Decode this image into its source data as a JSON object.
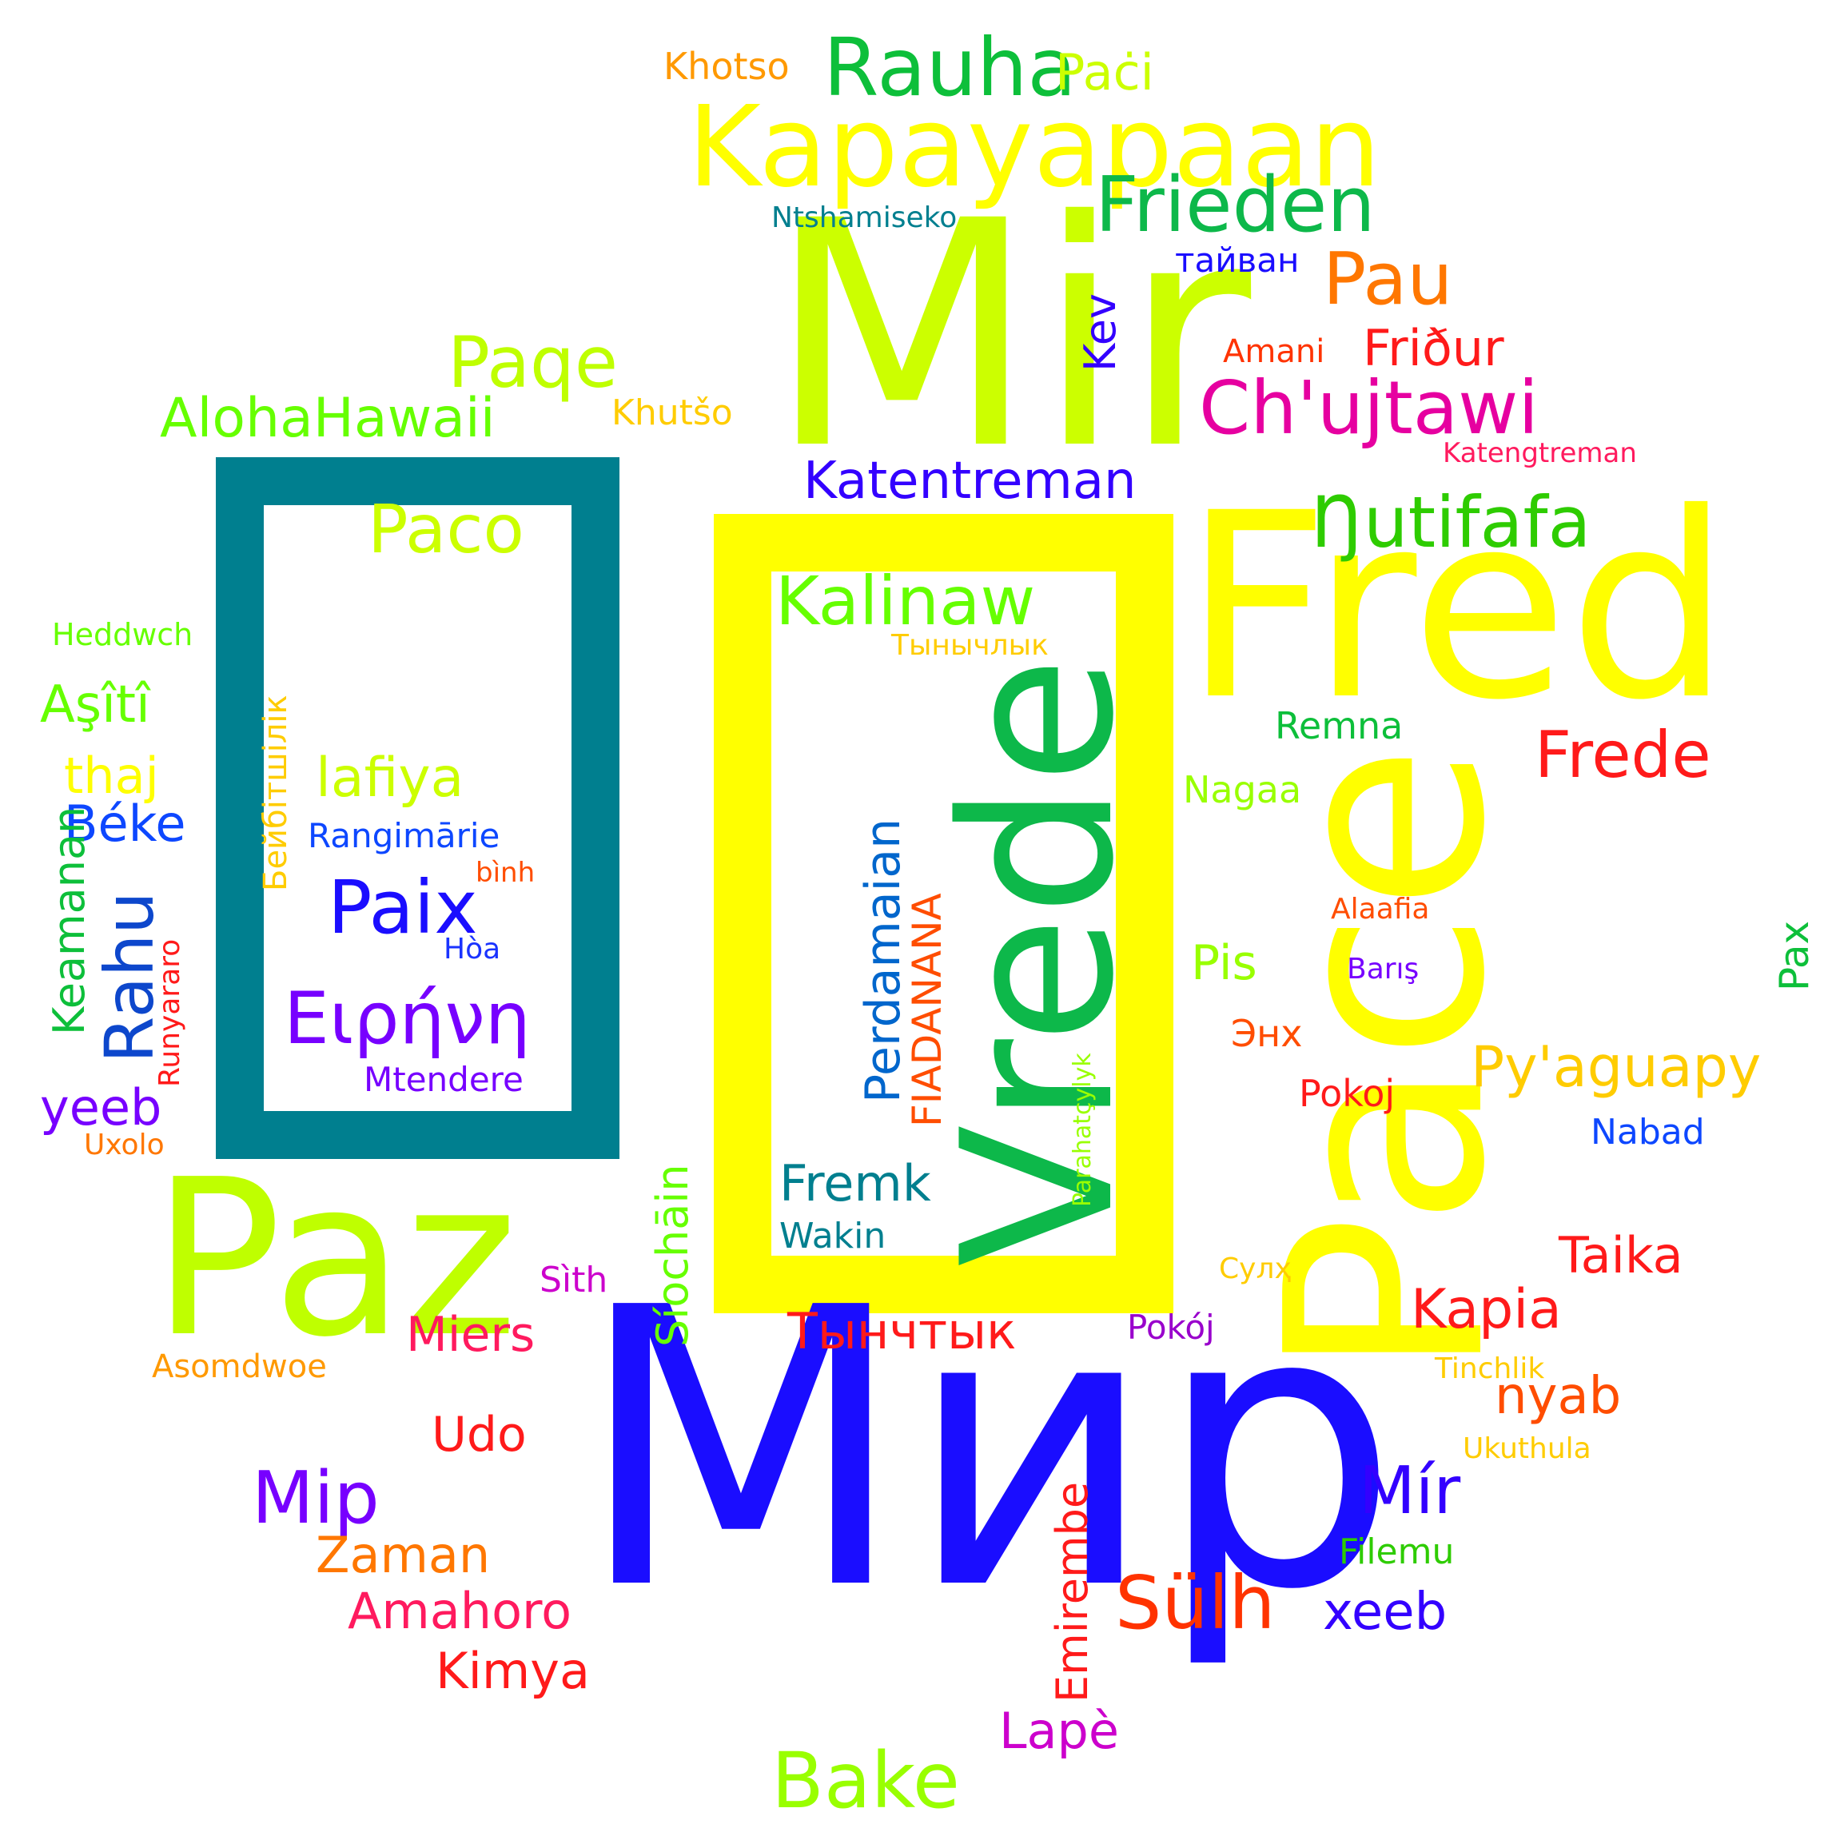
{
  "colors": {
    "background": "#ffffff",
    "teal_block": "#007f8f",
    "yellow_block": "#ffff00"
  },
  "words": [
    {
      "text": "Mir",
      "color": "#ccff00"
    },
    {
      "text": "Мир",
      "color": "#1a0dff"
    },
    {
      "text": "Fred",
      "color": "#ffff00"
    },
    {
      "text": "Pace",
      "color": "#ffff00"
    },
    {
      "text": "Paz",
      "color": "#bfff00"
    },
    {
      "text": "Vrede",
      "color": "#0db84a"
    },
    {
      "text": "Kapayapaan",
      "color": "#ffff00"
    },
    {
      "text": "Rauha",
      "color": "#0dbf3a"
    },
    {
      "text": "Paċi",
      "color": "#ccff00"
    },
    {
      "text": "Khotso",
      "color": "#ff9900"
    },
    {
      "text": "Frieden",
      "color": "#0db84a"
    },
    {
      "text": "Ntshamiseko",
      "color": "#007f8f"
    },
    {
      "text": "тайван",
      "color": "#1a0dff"
    },
    {
      "text": "Pau",
      "color": "#ff7700"
    },
    {
      "text": "Kev",
      "color": "#3300ff"
    },
    {
      "text": "Friður",
      "color": "#ff1a1a"
    },
    {
      "text": "Amani",
      "color": "#ff3300"
    },
    {
      "text": "Paqe",
      "color": "#bfff00"
    },
    {
      "text": "Ch'ujtawi",
      "color": "#e600a0"
    },
    {
      "text": "AlohaHawaii",
      "color": "#66ff00"
    },
    {
      "text": "Khutšo",
      "color": "#ffcc00"
    },
    {
      "text": "Katengtreman",
      "color": "#ff1a5e"
    },
    {
      "text": "Katentreman",
      "color": "#3300ff"
    },
    {
      "text": "Ŋutifafa",
      "color": "#2ecc00"
    },
    {
      "text": "Paco",
      "color": "#ccff00"
    },
    {
      "text": "Бейбітшілік",
      "color": "#ffcc00"
    },
    {
      "text": "lafiya",
      "color": "#ccff00"
    },
    {
      "text": "Rangimārie",
      "color": "#0d47ff"
    },
    {
      "text": "bình",
      "color": "#ff4d00"
    },
    {
      "text": "Paix",
      "color": "#1a0dff"
    },
    {
      "text": "Hòa",
      "color": "#1a33ff"
    },
    {
      "text": "Ειρήνη",
      "color": "#7700ff"
    },
    {
      "text": "Mtendere",
      "color": "#7700ff"
    },
    {
      "text": "Kalinaw",
      "color": "#66ff00"
    },
    {
      "text": "Тынычлык",
      "color": "#ffcc00"
    },
    {
      "text": "Perdamaian",
      "color": "#0066cc"
    },
    {
      "text": "FIADANANA",
      "color": "#ff4d00"
    },
    {
      "text": "Fremk",
      "color": "#007f8f"
    },
    {
      "text": "Wakin",
      "color": "#007f8f"
    },
    {
      "text": "Síochāin",
      "color": "#66ff00"
    },
    {
      "text": "Parahatçylyk",
      "color": "#99ff00"
    },
    {
      "text": "Heddwch",
      "color": "#66ff00"
    },
    {
      "text": "Aşîtî",
      "color": "#66ff00"
    },
    {
      "text": "thaj",
      "color": "#ffff00"
    },
    {
      "text": "Béke",
      "color": "#0d47ff"
    },
    {
      "text": "Rahu",
      "color": "#0d47cc"
    },
    {
      "text": "Runyararo",
      "color": "#ff1a1a"
    },
    {
      "text": "Keamanan",
      "color": "#0dbf3a"
    },
    {
      "text": "yeeb",
      "color": "#7700ff"
    },
    {
      "text": "Uxolo",
      "color": "#ff7700"
    },
    {
      "text": "Remna",
      "color": "#0dbf3a"
    },
    {
      "text": "Nagaa",
      "color": "#99ff00"
    },
    {
      "text": "Frede",
      "color": "#ff1a1a"
    },
    {
      "text": "Pis",
      "color": "#99ff00"
    },
    {
      "text": "Alaafia",
      "color": "#ff4d00"
    },
    {
      "text": "Barış",
      "color": "#7700ff"
    },
    {
      "text": "Энх",
      "color": "#ff4d00"
    },
    {
      "text": "Pax",
      "color": "#0dbf3a"
    },
    {
      "text": "Py'aguapy",
      "color": "#ffcc00"
    },
    {
      "text": "Pokoj",
      "color": "#ff1a1a"
    },
    {
      "text": "Nabad",
      "color": "#0d47ff"
    },
    {
      "text": "Taika",
      "color": "#ff1a1a"
    },
    {
      "text": "Kapia",
      "color": "#ff1a1a"
    },
    {
      "text": "Сулҳ",
      "color": "#ffcc00"
    },
    {
      "text": "Tinchlik",
      "color": "#ffcc00"
    },
    {
      "text": "nyab",
      "color": "#ff4d00"
    },
    {
      "text": "Ukuthula",
      "color": "#ffcc00"
    },
    {
      "text": "Mír",
      "color": "#3300ff"
    },
    {
      "text": "Filemu",
      "color": "#2ecc00"
    },
    {
      "text": "xeeb",
      "color": "#3300ff"
    },
    {
      "text": "Sülh",
      "color": "#ff3300"
    },
    {
      "text": "Тынчтык",
      "color": "#ff1a1a"
    },
    {
      "text": "Pokój",
      "color": "#9900cc"
    },
    {
      "text": "Emirembe",
      "color": "#ff1a1a"
    },
    {
      "text": "Lapè",
      "color": "#cc00cc"
    },
    {
      "text": "Bake",
      "color": "#99ff00"
    },
    {
      "text": "Miers",
      "color": "#ff1a5e"
    },
    {
      "text": "Udo",
      "color": "#ff1a1a"
    },
    {
      "text": "Mip",
      "color": "#7700ff"
    },
    {
      "text": "Zaman",
      "color": "#ff7700"
    },
    {
      "text": "Amahoro",
      "color": "#ff1a5e"
    },
    {
      "text": "Kimya",
      "color": "#ff1a1a"
    },
    {
      "text": "Sìth",
      "color": "#cc00cc"
    },
    {
      "text": "Asomdwoe",
      "color": "#ff9900"
    }
  ]
}
